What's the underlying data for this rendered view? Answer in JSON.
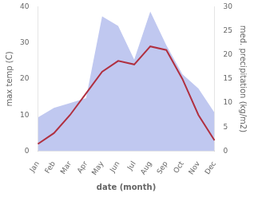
{
  "chart_data": {
    "type": "line",
    "xlabel": "date (month)",
    "ylabel": "max temp (C)",
    "y2label": "med. precipitation (kg/m2)",
    "categories": [
      "Jan",
      "Feb",
      "Mar",
      "Apr",
      "May",
      "Jun",
      "Jul",
      "Aug",
      "Sep",
      "Oct",
      "Nov",
      "Dec"
    ],
    "series": [
      {
        "type": "area",
        "color": "#c0c8f0",
        "axis": "y2",
        "values": [
          7,
          9,
          10,
          11,
          28,
          26,
          19,
          29,
          22,
          16,
          13,
          8
        ]
      },
      {
        "type": "line",
        "color": "#b03040",
        "values": [
          2,
          5,
          10,
          16,
          22,
          25,
          24,
          29,
          28,
          20,
          10,
          3
        ]
      }
    ],
    "ylim": [
      0,
      40
    ],
    "yticks": [
      0,
      10,
      20,
      30,
      40
    ],
    "y2lim": [
      0,
      30
    ],
    "y2ticks": [
      0,
      5,
      10,
      15,
      20,
      25,
      30
    ],
    "grid": false
  }
}
